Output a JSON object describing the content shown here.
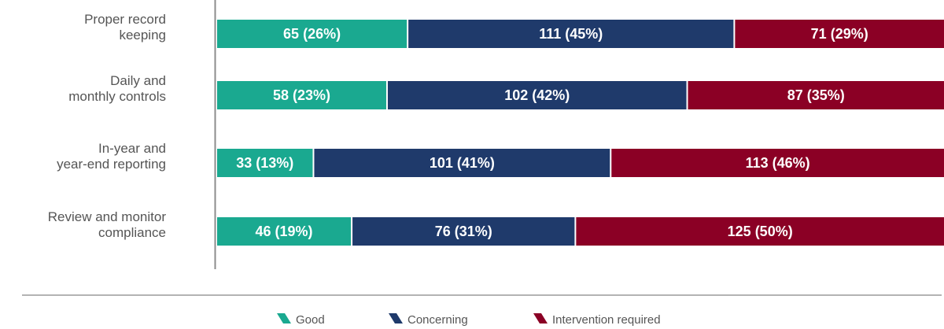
{
  "chart_data": {
    "type": "bar",
    "orientation": "horizontal",
    "stacked": true,
    "categories": [
      [
        "Proper record",
        "keeping"
      ],
      [
        "Daily and",
        "monthly controls"
      ],
      [
        "In-year and",
        "year-end reporting"
      ],
      [
        "Review and monitor",
        "compliance"
      ]
    ],
    "series": [
      {
        "name": "Good",
        "color": "#1aa990",
        "values": [
          65,
          58,
          33,
          46
        ],
        "labels": [
          "65 (26%)",
          "58 (23%)",
          "33 (13%)",
          "46 (19%)"
        ]
      },
      {
        "name": "Concerning",
        "color": "#1f3a6b",
        "values": [
          111,
          102,
          101,
          76
        ],
        "labels": [
          "111 (45%)",
          "102 (42%)",
          "101 (41%)",
          "76 (31%)"
        ]
      },
      {
        "name": "Intervention required",
        "color": "#8b0025",
        "values": [
          71,
          87,
          113,
          125
        ],
        "labels": [
          "71 (29%)",
          "87 (35%)",
          "113 (46%)",
          "125 (50%)"
        ]
      }
    ],
    "legend_position": "bottom",
    "grid": false
  }
}
